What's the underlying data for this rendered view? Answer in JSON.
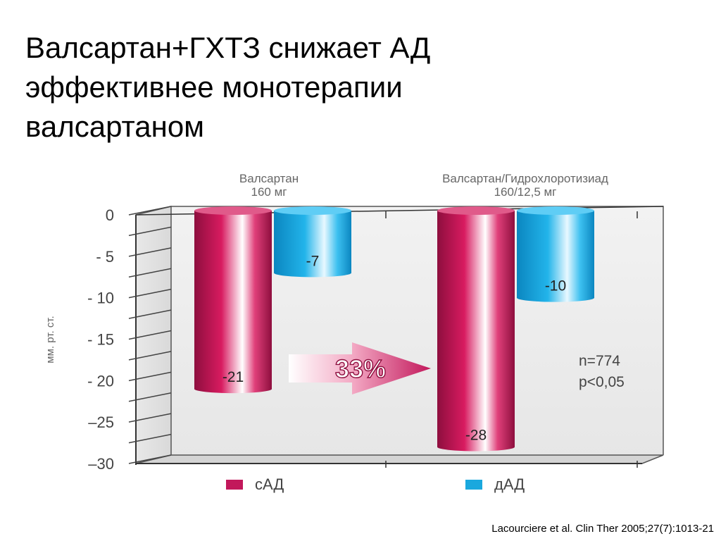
{
  "slide": {
    "title_lines": [
      "Валсартан+ГХТЗ снижает АД",
      "эффективнее монотерапии",
      "валсартаном"
    ],
    "citation": "Lacourciere et al. Clin Ther 2005;27(7):1013-21"
  },
  "colors": {
    "sad": "#c2185b",
    "dad": "#1aa8de",
    "arrow": "#c2185b",
    "axis": "#333333"
  },
  "chart_data": {
    "type": "bar",
    "title": "",
    "ylabel": "мм. рт. ст.",
    "xlabel": "",
    "ylim": [
      -30,
      0
    ],
    "yticks": [
      {
        "value": 0,
        "label": "0"
      },
      {
        "value": -5,
        "label": "- 5"
      },
      {
        "value": -10,
        "label": "- 10"
      },
      {
        "value": -15,
        "label": "- 15"
      },
      {
        "value": -20,
        "label": "- 20"
      },
      {
        "value": -25,
        "label": "–25"
      },
      {
        "value": -30,
        "label": "–30"
      }
    ],
    "categories": [
      [
        "Валсартан",
        "160 мг"
      ],
      [
        "Валсартан/Гидрохлоротизиад",
        "160/12,5 мг"
      ]
    ],
    "series": [
      {
        "name": "сАД",
        "color": "#c2185b",
        "values": [
          -21,
          -28
        ],
        "labels": [
          "-21",
          "-28"
        ]
      },
      {
        "name": "дАД",
        "color": "#1aa8de",
        "values": [
          -7,
          -10
        ],
        "labels": [
          "-7",
          "-10"
        ]
      }
    ],
    "legend_position": "bottom",
    "annotations": {
      "arrow_text": "33%",
      "stats": [
        "n=774",
        "p<0,05"
      ]
    }
  }
}
